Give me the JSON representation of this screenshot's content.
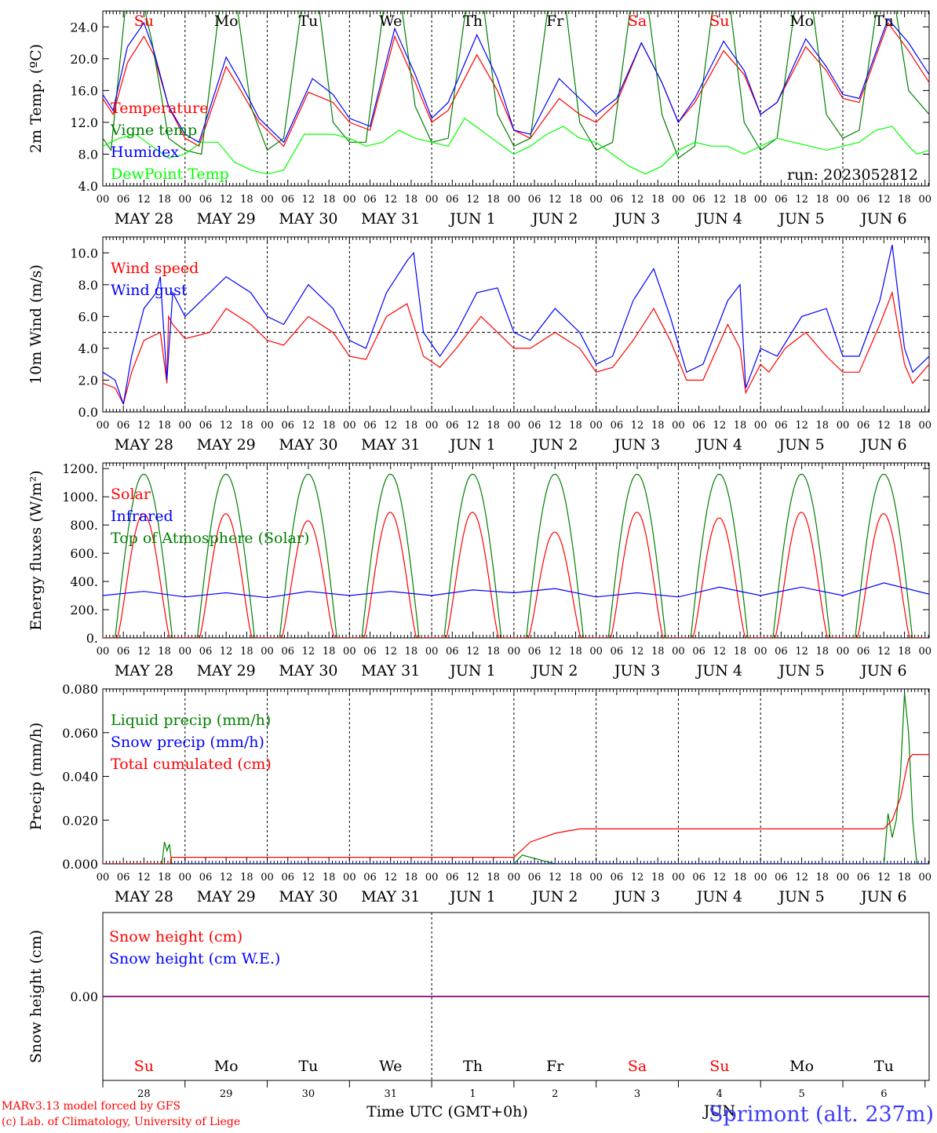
{
  "colors": {
    "red": "#ff0000",
    "green": "#008000",
    "blue": "#0000ff",
    "lightgreen": "#00ff00",
    "purple": "#800080",
    "black": "#000000"
  },
  "axes": {
    "hours": [
      "00",
      "06",
      "12",
      "18"
    ],
    "days": [
      "MAY 28",
      "MAY 29",
      "MAY 30",
      "MAY 31",
      "JUN  1",
      "JUN  2",
      "JUN  3",
      "JUN  4",
      "JUN  5",
      "JUN  6"
    ],
    "weekdays": [
      "Su",
      "Mo",
      "Tu",
      "We",
      "Th",
      "Fr",
      "Sa",
      "Su",
      "Mo",
      "Tu"
    ],
    "weekday_colors": [
      "#ff0000",
      "#000000",
      "#000000",
      "#000000",
      "#000000",
      "#000000",
      "#ff0000",
      "#ff0000",
      "#000000",
      "#000000"
    ],
    "day_numbers": [
      "28",
      "29",
      "30",
      "31",
      "1",
      "2",
      "3",
      "4",
      "5",
      "6"
    ],
    "month_label": "JUN",
    "xlabel": "Time UTC (GMT+0h)"
  },
  "footer": {
    "line1": "MARv3.13 model forced by GFS",
    "line2": "(c) Lab. of Climatology, University of Liege",
    "station": "Sprimont (alt. 237m)"
  },
  "chart_data": [
    {
      "type": "line",
      "id": "temp",
      "ylabel": "2m Temp. (ºC)",
      "ylim": [
        4.0,
        26.0
      ],
      "yticks": [
        4.0,
        8.0,
        12.0,
        16.0,
        20.0,
        24.0
      ],
      "ytick_labels": [
        "4.0",
        "8.0",
        "12.0",
        "16.0",
        "20.0",
        "24.0"
      ],
      "annotation": "run: 2023052812",
      "x_unit": "days since 2023-05-28 00 UTC",
      "series": [
        {
          "name": "Temperature",
          "color": "#ff0000",
          "x": [
            0,
            0.125,
            0.3,
            0.5,
            0.62,
            0.8,
            1.0,
            1.17,
            1.5,
            1.65,
            1.9,
            2.2,
            2.5,
            2.8,
            3.0,
            3.25,
            3.55,
            3.8,
            4.0,
            4.2,
            4.55,
            4.8,
            5.0,
            5.2,
            5.55,
            5.8,
            6.0,
            6.25,
            6.55,
            6.8,
            7.0,
            7.2,
            7.55,
            7.8,
            8.0,
            8.2,
            8.55,
            8.8,
            9.0,
            9.2,
            9.55,
            9.8,
            10.05
          ],
          "y": [
            15.0,
            13.0,
            19.5,
            22.8,
            20.5,
            14.0,
            10.0,
            9.0,
            19.0,
            16.5,
            12.0,
            9.0,
            15.8,
            14.5,
            12.0,
            11.0,
            22.8,
            17.0,
            12.0,
            13.5,
            20.5,
            16.0,
            11.0,
            10.0,
            15.0,
            13.0,
            12.0,
            14.5,
            22.0,
            17.0,
            12.0,
            14.5,
            21.0,
            18.0,
            13.0,
            14.5,
            21.5,
            18.5,
            15.0,
            14.5,
            24.5,
            21.0,
            17.0
          ]
        },
        {
          "name": "Vigne temp",
          "color": "#008000",
          "x": [
            0,
            0.1,
            0.3,
            0.45,
            0.6,
            0.8,
            1.0,
            1.2,
            1.45,
            1.6,
            1.8,
            2.0,
            2.2,
            2.45,
            2.6,
            2.8,
            3.0,
            3.2,
            3.45,
            3.6,
            3.8,
            4.0,
            4.2,
            4.45,
            4.6,
            4.8,
            5.0,
            5.2,
            5.45,
            5.6,
            5.8,
            6.0,
            6.2,
            6.45,
            6.6,
            6.8,
            7.0,
            7.2,
            7.45,
            7.6,
            7.8,
            8.0,
            8.2,
            8.45,
            8.6,
            8.8,
            9.0,
            9.2,
            9.45,
            9.6,
            9.8,
            10.05
          ],
          "y": [
            10.0,
            8.5,
            29.0,
            29.0,
            22.0,
            10.0,
            8.5,
            8.0,
            29.0,
            29.0,
            14.0,
            8.5,
            10.0,
            29.0,
            29.0,
            12.0,
            9.5,
            9.5,
            29.0,
            29.0,
            14.0,
            9.5,
            10.0,
            29.0,
            29.0,
            13.0,
            9.0,
            10.0,
            29.0,
            29.0,
            12.0,
            8.5,
            9.5,
            29.0,
            29.0,
            13.0,
            7.5,
            9.0,
            29.0,
            29.0,
            12.0,
            8.5,
            10.0,
            29.0,
            29.0,
            13.0,
            10.0,
            11.0,
            29.0,
            29.0,
            16.0,
            13.0
          ]
        },
        {
          "name": "Humidex",
          "color": "#0000ff",
          "x": [
            0,
            0.125,
            0.3,
            0.5,
            0.62,
            0.8,
            1.0,
            1.17,
            1.5,
            1.65,
            1.9,
            2.2,
            2.55,
            2.8,
            3.0,
            3.25,
            3.55,
            3.8,
            4.0,
            4.2,
            4.55,
            4.8,
            5.0,
            5.2,
            5.55,
            5.8,
            6.0,
            6.25,
            6.55,
            6.8,
            7.0,
            7.2,
            7.55,
            7.8,
            8.0,
            8.2,
            8.55,
            8.8,
            9.0,
            9.2,
            9.55,
            9.8,
            10.05
          ],
          "y": [
            15.5,
            13.5,
            21.5,
            24.5,
            21.0,
            14.0,
            10.5,
            9.5,
            20.2,
            17.5,
            12.5,
            9.5,
            17.5,
            15.5,
            12.5,
            11.5,
            23.8,
            18.0,
            12.5,
            14.5,
            23.0,
            17.5,
            11.0,
            10.5,
            17.5,
            15.0,
            13.0,
            15.0,
            22.0,
            17.0,
            12.0,
            15.0,
            22.2,
            18.5,
            13.0,
            14.5,
            22.5,
            19.0,
            15.5,
            15.0,
            25.0,
            22.0,
            18.0
          ]
        },
        {
          "name": "DewPoint Temp",
          "color": "#00ff00",
          "x": [
            0,
            0.2,
            0.4,
            0.6,
            0.8,
            1.0,
            1.2,
            1.4,
            1.6,
            1.8,
            2.0,
            2.2,
            2.45,
            2.65,
            2.8,
            3.0,
            3.2,
            3.4,
            3.6,
            3.8,
            4.0,
            4.2,
            4.4,
            4.6,
            4.8,
            5.0,
            5.2,
            5.4,
            5.6,
            5.8,
            6.0,
            6.2,
            6.4,
            6.6,
            6.8,
            7.0,
            7.2,
            7.4,
            7.6,
            7.8,
            8.0,
            8.2,
            8.4,
            8.6,
            8.8,
            9.0,
            9.2,
            9.4,
            9.6,
            9.8,
            9.9,
            10.05
          ],
          "y": [
            9.0,
            10.0,
            10.5,
            9.0,
            7.5,
            8.0,
            9.5,
            9.5,
            7.0,
            6.0,
            5.5,
            6.0,
            10.5,
            10.5,
            10.5,
            10.0,
            9.0,
            9.5,
            11.0,
            10.0,
            9.5,
            9.0,
            12.5,
            11.0,
            9.5,
            8.0,
            9.0,
            10.5,
            11.5,
            10.0,
            9.5,
            8.0,
            6.5,
            5.5,
            6.5,
            8.5,
            9.5,
            9.0,
            9.0,
            8.0,
            9.0,
            10.0,
            9.5,
            9.0,
            8.5,
            9.0,
            9.5,
            11.0,
            11.5,
            9.0,
            8.0,
            8.5
          ]
        }
      ]
    },
    {
      "type": "line",
      "id": "wind",
      "ylabel": "10m Wind (m/s)",
      "ylim": [
        0.0,
        11.0
      ],
      "yticks": [
        0.0,
        2.0,
        4.0,
        6.0,
        8.0,
        10.0
      ],
      "ytick_labels": [
        "0.0",
        "2.0",
        "4.0",
        "6.0",
        "8.0",
        "10.0"
      ],
      "reference_line": 5.0,
      "series": [
        {
          "name": "Wind speed",
          "color": "#ff0000",
          "x": [
            0,
            0.15,
            0.25,
            0.35,
            0.5,
            0.7,
            0.78,
            0.8,
            0.85,
            1.0,
            1.3,
            1.5,
            1.8,
            2.0,
            2.2,
            2.5,
            2.8,
            3.0,
            3.2,
            3.45,
            3.7,
            3.9,
            4.1,
            4.3,
            4.6,
            4.8,
            5.0,
            5.2,
            5.5,
            5.8,
            6.0,
            6.2,
            6.45,
            6.7,
            6.9,
            7.1,
            7.3,
            7.6,
            7.75,
            7.82,
            8.0,
            8.1,
            8.3,
            8.55,
            8.8,
            9.0,
            9.2,
            9.45,
            9.6,
            9.75,
            9.85,
            10.05
          ],
          "y": [
            1.8,
            1.5,
            0.5,
            2.5,
            4.5,
            5.0,
            1.8,
            6.0,
            5.5,
            4.6,
            5.0,
            6.5,
            5.5,
            4.5,
            4.2,
            6.0,
            5.0,
            3.5,
            3.3,
            6.0,
            6.8,
            3.5,
            2.8,
            4.0,
            6.0,
            5.0,
            4.0,
            4.0,
            5.0,
            4.0,
            2.5,
            2.8,
            4.5,
            6.5,
            4.5,
            2.0,
            2.0,
            5.5,
            4.0,
            1.2,
            3.0,
            2.5,
            4.0,
            5.0,
            3.5,
            2.5,
            2.5,
            5.5,
            7.5,
            3.0,
            1.8,
            3.0
          ]
        },
        {
          "name": "Wind gust",
          "color": "#0000ff",
          "x": [
            0,
            0.15,
            0.25,
            0.35,
            0.5,
            0.65,
            0.7,
            0.78,
            0.85,
            1.0,
            1.2,
            1.5,
            1.8,
            2.0,
            2.2,
            2.5,
            2.8,
            3.0,
            3.2,
            3.45,
            3.7,
            3.78,
            3.9,
            4.1,
            4.3,
            4.55,
            4.8,
            5.0,
            5.2,
            5.5,
            5.8,
            6.0,
            6.2,
            6.45,
            6.7,
            6.9,
            7.1,
            7.3,
            7.6,
            7.75,
            7.82,
            8.0,
            8.2,
            8.5,
            8.8,
            9.0,
            9.2,
            9.45,
            9.6,
            9.75,
            9.85,
            10.05
          ],
          "y": [
            2.5,
            2.0,
            0.5,
            3.5,
            6.5,
            7.5,
            8.5,
            2.0,
            7.5,
            6.0,
            7.0,
            8.5,
            7.5,
            6.0,
            5.5,
            8.0,
            6.5,
            4.5,
            4.0,
            7.5,
            9.5,
            10.0,
            5.0,
            3.5,
            5.0,
            7.5,
            7.8,
            5.0,
            4.5,
            6.5,
            5.0,
            3.0,
            3.5,
            7.0,
            9.0,
            6.0,
            2.5,
            3.0,
            7.0,
            8.0,
            1.5,
            4.0,
            3.5,
            6.0,
            6.5,
            3.5,
            3.5,
            7.0,
            10.5,
            4.0,
            2.5,
            3.5
          ]
        }
      ]
    },
    {
      "type": "line",
      "id": "flux",
      "ylabel": "Energy fluxes (W/m²)",
      "ylim": [
        0.0,
        1240.0
      ],
      "yticks": [
        0,
        200,
        400,
        600,
        800,
        1000,
        1200
      ],
      "ytick_labels": [
        "0.",
        "200.",
        "400.",
        "600.",
        "800.",
        "1000.",
        "1200."
      ],
      "daily": {
        "toa_sunrise_hour": 3.6,
        "toa_sunset_hour": 20.3,
        "toa_peak": 1160,
        "solar_sunrise_hour": 4.2,
        "solar_sunset_hour": 19.6,
        "solar_peaks": [
          880,
          880,
          830,
          890,
          890,
          750,
          890,
          850,
          890,
          880
        ]
      },
      "series": [
        {
          "name": "Solar",
          "color": "#ff0000"
        },
        {
          "name": "Infrared",
          "color": "#0000ff",
          "x": [
            0,
            0.5,
            1.0,
            1.5,
            2.0,
            2.5,
            3.0,
            3.5,
            4.0,
            4.5,
            5.0,
            5.5,
            6.0,
            6.5,
            7.0,
            7.5,
            8.0,
            8.5,
            9.0,
            9.5,
            10.05
          ],
          "y": [
            300,
            330,
            290,
            320,
            285,
            330,
            300,
            330,
            300,
            340,
            320,
            350,
            290,
            320,
            290,
            360,
            300,
            360,
            300,
            390,
            310
          ]
        },
        {
          "name": "Top of Atmosphere (Solar)",
          "color": "#008000"
        }
      ]
    },
    {
      "type": "line",
      "id": "precip",
      "ylabel": "Precip (mm/h)",
      "ylim": [
        0.0,
        0.08
      ],
      "yticks": [
        0.0,
        0.02,
        0.04,
        0.06,
        0.08
      ],
      "ytick_labels": [
        "0.000",
        "0.020",
        "0.040",
        "0.060",
        "0.080"
      ],
      "series": [
        {
          "name": "Liquid precip (mm/h)",
          "color": "#008000",
          "x": [
            0,
            0.72,
            0.75,
            0.78,
            0.81,
            0.84,
            0.9,
            5.0,
            5.1,
            5.3,
            5.5,
            5.7,
            9.5,
            9.55,
            9.6,
            9.65,
            9.7,
            9.75,
            9.8,
            9.85,
            9.9,
            10.05
          ],
          "y": [
            0,
            0,
            0.01,
            0.006,
            0.009,
            0,
            0,
            0,
            0.004,
            0.002,
            0,
            0,
            0,
            0.023,
            0.012,
            0.02,
            0.04,
            0.078,
            0.06,
            0.02,
            0,
            0
          ]
        },
        {
          "name": "Snow precip (mm/h)",
          "color": "#0000ff",
          "x": [
            0,
            10.05
          ],
          "y": [
            0,
            0
          ]
        },
        {
          "name": "Total cumulated (cm)",
          "color": "#ff0000",
          "x": [
            0,
            0.82,
            0.83,
            5.0,
            5.2,
            5.5,
            5.8,
            6.0,
            9.5,
            9.6,
            9.7,
            9.8,
            9.85,
            10.05
          ],
          "y": [
            0,
            0,
            0.003,
            0.003,
            0.01,
            0.014,
            0.016,
            0.016,
            0.016,
            0.02,
            0.03,
            0.048,
            0.05,
            0.05
          ]
        }
      ]
    },
    {
      "type": "line",
      "id": "snow",
      "ylabel": "Snow height (cm)",
      "ylim": [
        -0.5,
        0.5
      ],
      "yticks": [
        0.0
      ],
      "ytick_labels": [
        "0.00"
      ],
      "series": [
        {
          "name": "Snow height (cm)",
          "color": "#ff0000",
          "x": [
            0,
            10.05
          ],
          "y": [
            0,
            0
          ]
        },
        {
          "name": "Snow height (cm W.E.)",
          "color": "#0000ff",
          "x": [
            0,
            10.05
          ],
          "y": [
            0,
            0
          ]
        }
      ]
    }
  ]
}
